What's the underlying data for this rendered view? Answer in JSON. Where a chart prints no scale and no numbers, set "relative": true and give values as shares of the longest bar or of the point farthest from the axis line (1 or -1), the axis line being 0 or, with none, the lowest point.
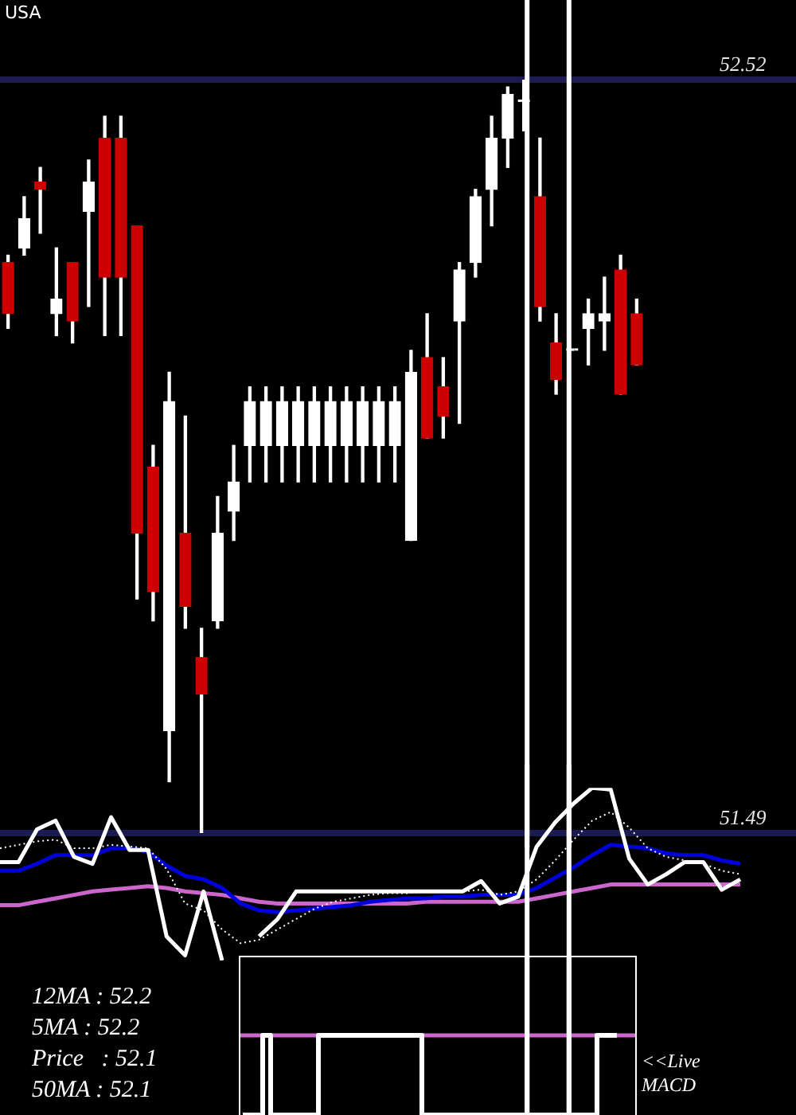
{
  "chart_data": [
    {
      "type": "candlestick",
      "title": "USA",
      "categories": [
        null,
        null,
        null,
        null,
        null,
        null,
        null,
        null,
        null,
        null,
        null,
        null,
        null,
        null,
        null,
        null,
        null,
        null,
        null,
        null,
        null,
        null,
        null,
        null,
        null,
        null,
        null,
        null,
        null,
        null,
        null,
        null,
        null,
        null,
        null,
        null,
        null,
        null,
        null,
        null
      ],
      "ohlc": [
        [
          52.27,
          52.28,
          52.18,
          52.2
        ],
        [
          52.29,
          52.36,
          52.28,
          52.33
        ],
        [
          52.38,
          52.4,
          52.31,
          52.37
        ],
        [
          52.2,
          52.29,
          52.17,
          52.22
        ],
        [
          52.27,
          52.27,
          52.16,
          52.19
        ],
        [
          52.34,
          52.41,
          52.21,
          52.38
        ],
        [
          52.44,
          52.47,
          52.17,
          52.25
        ],
        [
          52.44,
          52.47,
          52.17,
          52.25
        ],
        [
          52.32,
          52.32,
          51.81,
          51.9
        ],
        [
          51.99,
          52.02,
          51.78,
          51.82
        ],
        [
          51.63,
          52.12,
          51.56,
          52.08
        ],
        [
          51.9,
          52.06,
          51.77,
          51.8
        ],
        [
          51.73,
          51.77,
          51.49,
          51.68
        ],
        [
          51.78,
          51.95,
          51.77,
          51.9
        ],
        [
          51.93,
          52.02,
          51.89,
          51.97
        ],
        [
          52.02,
          52.1,
          51.97,
          52.08
        ],
        [
          52.02,
          52.1,
          51.97,
          52.08
        ],
        [
          52.02,
          52.1,
          51.97,
          52.08
        ],
        [
          52.02,
          52.1,
          51.97,
          52.08
        ],
        [
          52.02,
          52.1,
          51.97,
          52.08
        ],
        [
          52.02,
          52.1,
          51.97,
          52.08
        ],
        [
          52.02,
          52.1,
          51.97,
          52.08
        ],
        [
          52.02,
          52.1,
          51.97,
          52.08
        ],
        [
          52.02,
          52.1,
          51.97,
          52.08
        ],
        [
          52.02,
          52.1,
          51.97,
          52.08
        ],
        [
          51.89,
          52.15,
          51.89,
          52.12
        ],
        [
          52.14,
          52.2,
          52.03,
          52.03
        ],
        [
          52.1,
          52.14,
          52.03,
          52.06
        ],
        [
          52.19,
          52.27,
          52.05,
          52.26
        ],
        [
          52.27,
          52.37,
          52.25,
          52.36
        ],
        [
          52.37,
          52.47,
          52.32,
          52.44
        ],
        [
          52.44,
          52.51,
          52.4,
          52.5
        ],
        [
          52.49,
          52.52,
          52.45,
          52.49
        ],
        [
          52.36,
          52.44,
          52.19,
          52.21
        ],
        [
          52.16,
          52.2,
          52.09,
          52.11
        ],
        [
          52.15,
          52.15,
          52.15,
          52.15
        ],
        [
          52.18,
          52.22,
          52.13,
          52.2
        ],
        [
          52.19,
          52.25,
          52.15,
          52.2
        ],
        [
          52.26,
          52.28,
          52.09,
          52.09
        ],
        [
          52.2,
          52.22,
          52.13,
          52.13
        ]
      ],
      "colors": [
        "#cc0000",
        "#ffffff",
        "#cc0000",
        "#ffffff",
        "#cc0000",
        "#ffffff",
        "#cc0000",
        "#cc0000",
        "#cc0000",
        "#cc0000",
        "#ffffff",
        "#cc0000",
        "#cc0000",
        "#ffffff",
        "#ffffff",
        "#ffffff",
        "#ffffff",
        "#ffffff",
        "#ffffff",
        "#ffffff",
        "#ffffff",
        "#ffffff",
        "#ffffff",
        "#ffffff",
        "#ffffff",
        "#ffffff",
        "#cc0000",
        "#cc0000",
        "#ffffff",
        "#ffffff",
        "#ffffff",
        "#ffffff",
        "#ffffff",
        "#cc0000",
        "#cc0000",
        "#ffffff",
        "#ffffff",
        "#ffffff",
        "#cc0000",
        "#cc0000"
      ],
      "ylim": [
        51.49,
        52.52
      ],
      "yticks": [
        51.49,
        52.52
      ],
      "grid": "y",
      "tick_labels": "y"
    },
    {
      "type": "line",
      "relative": true,
      "tick_labels": false,
      "categories": [
        null,
        null,
        null,
        null,
        null,
        null,
        null,
        null,
        null,
        null,
        null,
        null,
        null,
        null,
        null,
        null,
        null,
        null,
        null,
        null,
        null,
        null,
        null,
        null,
        null,
        null,
        null,
        null,
        null,
        null,
        null,
        null,
        null,
        null,
        null,
        null,
        null,
        null,
        null,
        null,
        null
      ],
      "series": [
        {
          "color": "#ffffff",
          "values": [
            0.57,
            0.57,
            0.76,
            0.81,
            0.6,
            0.56,
            0.83,
            0.64,
            0.64,
            0.14,
            0.03,
            0.4,
            0,
            null,
            0.14,
            0.24,
            0.4,
            0.4,
            0.4,
            0.4,
            0.4,
            0.4,
            0.4,
            0.4,
            0.4,
            0.4,
            0.46,
            0.33,
            0.37,
            0.66,
            0.8,
            0.91,
            1,
            0.99,
            0.59,
            0.44,
            0.5,
            0.57,
            0.57,
            0.41,
            0.47
          ]
        },
        {
          "color": "#ffffff",
          "line_style": "dotted",
          "values": [
            0.65,
            0.67,
            0.69,
            0.7,
            0.65,
            0.65,
            0.67,
            0.66,
            0.65,
            0.53,
            0.33,
            0.29,
            0.18,
            0.1,
            0.12,
            0.18,
            0.24,
            0.3,
            0.34,
            0.36,
            0.38,
            0.39,
            0.39,
            0.4,
            0.4,
            0.4,
            0.41,
            0.38,
            0.4,
            0.47,
            0.58,
            0.7,
            0.81,
            0.86,
            0.77,
            0.65,
            0.6,
            0.58,
            0.56,
            0.52,
            0.5
          ]
        },
        {
          "color": "#0000dd",
          "values": [
            0.52,
            0.52,
            0.56,
            0.61,
            0.61,
            0.61,
            0.65,
            0.65,
            0.63,
            0.55,
            0.49,
            0.47,
            0.42,
            0.33,
            0.29,
            0.28,
            0.29,
            0.3,
            0.31,
            0.32,
            0.34,
            0.35,
            0.36,
            0.36,
            0.37,
            0.37,
            0.38,
            0.38,
            0.38,
            0.42,
            0.48,
            0.54,
            0.61,
            0.67,
            0.66,
            0.65,
            0.62,
            0.61,
            0.61,
            0.58,
            0.56
          ]
        },
        {
          "color": "#cc66cc",
          "values": [
            0.32,
            0.32,
            0.34,
            0.36,
            0.38,
            0.4,
            0.41,
            0.42,
            0.43,
            0.42,
            0.4,
            0.39,
            0.38,
            0.36,
            0.34,
            0.33,
            0.33,
            0.33,
            0.33,
            0.33,
            0.33,
            0.33,
            0.33,
            0.34,
            0.34,
            0.34,
            0.34,
            0.34,
            0.34,
            0.36,
            0.38,
            0.4,
            0.42,
            0.44,
            0.44,
            0.44,
            0.44,
            0.44,
            0.44,
            0.44,
            0.44
          ]
        }
      ],
      "annotations": [
        "12MA : 52.2",
        "5MA : 52.2",
        "Price   : 52.1",
        "50MA : 52.1"
      ]
    },
    {
      "type": "step",
      "relative": true,
      "tick_labels": false,
      "categories": [
        null,
        null,
        null,
        null,
        null,
        null,
        null,
        null,
        null,
        null,
        null,
        null,
        null,
        null,
        null,
        null,
        null,
        null,
        null,
        null,
        null,
        null,
        null,
        null,
        null,
        null,
        null,
        null,
        null,
        null,
        null,
        null,
        null,
        null,
        null,
        null,
        null,
        null,
        null,
        null,
        null,
        null,
        null,
        null,
        null,
        null,
        null,
        null,
        null,
        null
      ],
      "series": [
        {
          "color": "#ffffff",
          "values": [
            -1,
            -1,
            -1,
            0,
            -1,
            -1,
            -1,
            -1,
            -1,
            -1,
            0,
            0,
            0,
            0,
            0,
            0,
            0,
            0,
            0,
            0,
            0,
            0,
            0,
            -1,
            -1,
            -1,
            -1,
            -1,
            -1,
            -1,
            -1,
            -1,
            -1,
            -1,
            -1,
            -1,
            -1,
            -1,
            -1,
            -1,
            -1,
            -1,
            -1,
            -1,
            -1,
            0,
            0,
            0,
            null,
            null
          ]
        }
      ],
      "ref_lines": [
        {
          "axis": "y",
          "value": 0,
          "color": "#cc66cc"
        }
      ],
      "annotations": [
        "<<Live",
        "MACD"
      ]
    }
  ]
}
